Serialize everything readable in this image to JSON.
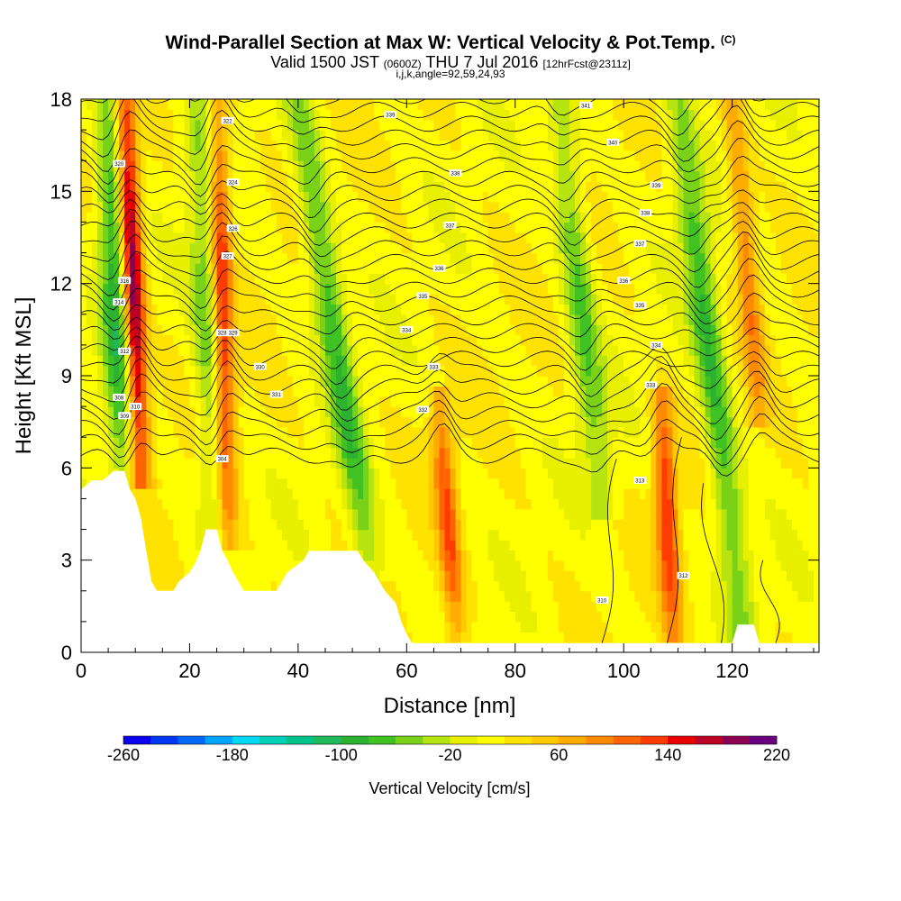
{
  "header": {
    "title": "Wind-Parallel Section at Max W: Vertical Velocity & Pot.Temp.",
    "copyright": "(C)",
    "valid_prefix": "Valid 1500 JST",
    "valid_utc": "(0600Z)",
    "valid_date": "THU 7 Jul 2016",
    "forecast": "[12hrFcst@2311z]",
    "params": "i,j,k,angle=92,59,24,93"
  },
  "chart_data": {
    "type": "heatmap",
    "title": "Wind-Parallel Section at Max W: Vertical Velocity & Pot.Temp.",
    "xlabel": "Distance [nm]",
    "ylabel": "Height [Kft MSL]",
    "xlim": [
      0,
      136
    ],
    "ylim": [
      0,
      18
    ],
    "x_ticks": [
      0,
      20,
      40,
      60,
      80,
      100,
      120
    ],
    "y_ticks": [
      0,
      3,
      6,
      9,
      12,
      15,
      18
    ],
    "colorbar": {
      "label": "Vertical Velocity [cm/s]",
      "min": -260,
      "max": 220,
      "step": 20,
      "tick_labels": [
        -260,
        -180,
        -100,
        -20,
        60,
        140,
        220
      ],
      "colors": [
        "#0a00ee",
        "#0038f0",
        "#0068f8",
        "#00a4ff",
        "#00d8f6",
        "#00d0b6",
        "#00c48a",
        "#20b85a",
        "#2cb230",
        "#40c222",
        "#7ad218",
        "#b6e410",
        "#e8f000",
        "#ffff00",
        "#ffe200",
        "#ffc800",
        "#ffac00",
        "#ff8a00",
        "#ff6400",
        "#ff3c00",
        "#e80000",
        "#bc0026",
        "#8c0052",
        "#6a0080"
      ]
    },
    "background_value": 15,
    "features": [
      {
        "kind": "updraft",
        "x_base": 11,
        "y_base": 6,
        "x_top": 8,
        "y_top": 18,
        "peak": 220
      },
      {
        "kind": "downdraft",
        "x_base": 8,
        "y_base": 6,
        "x_top": 5,
        "y_top": 18,
        "peak": -100
      },
      {
        "kind": "updraft",
        "x_base": 27,
        "y_base": 4,
        "x_top": 25,
        "y_top": 18,
        "peak": 160
      },
      {
        "kind": "downdraft",
        "x_base": 25,
        "y_base": 4,
        "x_top": 22,
        "y_top": 18,
        "peak": -60
      },
      {
        "kind": "downdraft",
        "x_base": 53,
        "y_base": 3,
        "x_top": 40,
        "y_top": 18,
        "peak": -80
      },
      {
        "kind": "updraft",
        "x_base": 69,
        "y_base": 1,
        "x_top": 66,
        "y_top": 8,
        "peak": 120
      },
      {
        "kind": "downdraft",
        "x_base": 96,
        "y_base": 5,
        "x_top": 88,
        "y_top": 18,
        "peak": -60
      },
      {
        "kind": "updraft",
        "x_base": 109,
        "y_base": 1,
        "x_top": 107,
        "y_top": 8,
        "peak": 140
      },
      {
        "kind": "downdraft",
        "x_base": 122,
        "y_base": 1,
        "x_top": 110,
        "y_top": 18,
        "peak": -80
      },
      {
        "kind": "updraft",
        "x_base": 125,
        "y_base": 8,
        "x_top": 120,
        "y_top": 18,
        "peak": 100
      }
    ],
    "terrain": [
      [
        0,
        5.3
      ],
      [
        2,
        5.6
      ],
      [
        4,
        5.6
      ],
      [
        6,
        5.9
      ],
      [
        8,
        5.9
      ],
      [
        9,
        5.3
      ],
      [
        10,
        5.0
      ],
      [
        11,
        4.4
      ],
      [
        12,
        3.3
      ],
      [
        13,
        2.3
      ],
      [
        14,
        2.0
      ],
      [
        17,
        2.0
      ],
      [
        18,
        2.3
      ],
      [
        20,
        2.6
      ],
      [
        21,
        2.9
      ],
      [
        22,
        3.3
      ],
      [
        23,
        4.0
      ],
      [
        25,
        4.0
      ],
      [
        26,
        3.3
      ],
      [
        27,
        3.0
      ],
      [
        28,
        2.6
      ],
      [
        30,
        2.0
      ],
      [
        36,
        2.0
      ],
      [
        37,
        2.3
      ],
      [
        38,
        2.6
      ],
      [
        41,
        3.0
      ],
      [
        42,
        3.3
      ],
      [
        51,
        3.3
      ],
      [
        52,
        3.0
      ],
      [
        54,
        2.6
      ],
      [
        55,
        2.3
      ],
      [
        56,
        2.0
      ],
      [
        58,
        1.6
      ],
      [
        59,
        1.0
      ],
      [
        60,
        0.6
      ],
      [
        61,
        0.3
      ],
      [
        120,
        0.3
      ],
      [
        121,
        0.9
      ],
      [
        124,
        0.9
      ],
      [
        125,
        0.3
      ],
      [
        136,
        0.3
      ]
    ],
    "theta_contour_labels": [
      {
        "x": 7,
        "y": 8.3,
        "text": "308"
      },
      {
        "x": 8,
        "y": 7.7,
        "text": "309"
      },
      {
        "x": 10,
        "y": 8.0,
        "text": "310"
      },
      {
        "x": 8,
        "y": 9.8,
        "text": "312"
      },
      {
        "x": 7,
        "y": 11.4,
        "text": "314"
      },
      {
        "x": 8,
        "y": 12.1,
        "text": "316"
      },
      {
        "x": 7,
        "y": 15.9,
        "text": "320"
      },
      {
        "x": 27,
        "y": 17.3,
        "text": "322"
      },
      {
        "x": 28,
        "y": 15.3,
        "text": "324"
      },
      {
        "x": 28,
        "y": 13.8,
        "text": "326"
      },
      {
        "x": 27,
        "y": 12.9,
        "text": "327"
      },
      {
        "x": 26,
        "y": 10.4,
        "text": "328"
      },
      {
        "x": 28,
        "y": 10.4,
        "text": "329"
      },
      {
        "x": 33,
        "y": 9.3,
        "text": "330"
      },
      {
        "x": 36,
        "y": 8.4,
        "text": "331"
      },
      {
        "x": 26,
        "y": 6.3,
        "text": "304"
      },
      {
        "x": 57,
        "y": 17.5,
        "text": "339"
      },
      {
        "x": 69,
        "y": 15.6,
        "text": "338"
      },
      {
        "x": 68,
        "y": 13.9,
        "text": "337"
      },
      {
        "x": 66,
        "y": 12.5,
        "text": "336"
      },
      {
        "x": 63,
        "y": 11.6,
        "text": "335"
      },
      {
        "x": 60,
        "y": 10.5,
        "text": "334"
      },
      {
        "x": 65,
        "y": 9.3,
        "text": "333"
      },
      {
        "x": 63,
        "y": 7.9,
        "text": "332"
      },
      {
        "x": 93,
        "y": 17.8,
        "text": "341"
      },
      {
        "x": 98,
        "y": 16.6,
        "text": "340"
      },
      {
        "x": 106,
        "y": 15.2,
        "text": "339"
      },
      {
        "x": 104,
        "y": 14.3,
        "text": "338"
      },
      {
        "x": 103,
        "y": 13.3,
        "text": "337"
      },
      {
        "x": 100,
        "y": 12.1,
        "text": "336"
      },
      {
        "x": 103,
        "y": 11.3,
        "text": "335"
      },
      {
        "x": 106,
        "y": 10.0,
        "text": "334"
      },
      {
        "x": 105,
        "y": 8.7,
        "text": "333"
      },
      {
        "x": 103,
        "y": 5.6,
        "text": "313"
      },
      {
        "x": 96,
        "y": 1.7,
        "text": "310"
      },
      {
        "x": 111,
        "y": 2.5,
        "text": "312"
      }
    ]
  }
}
